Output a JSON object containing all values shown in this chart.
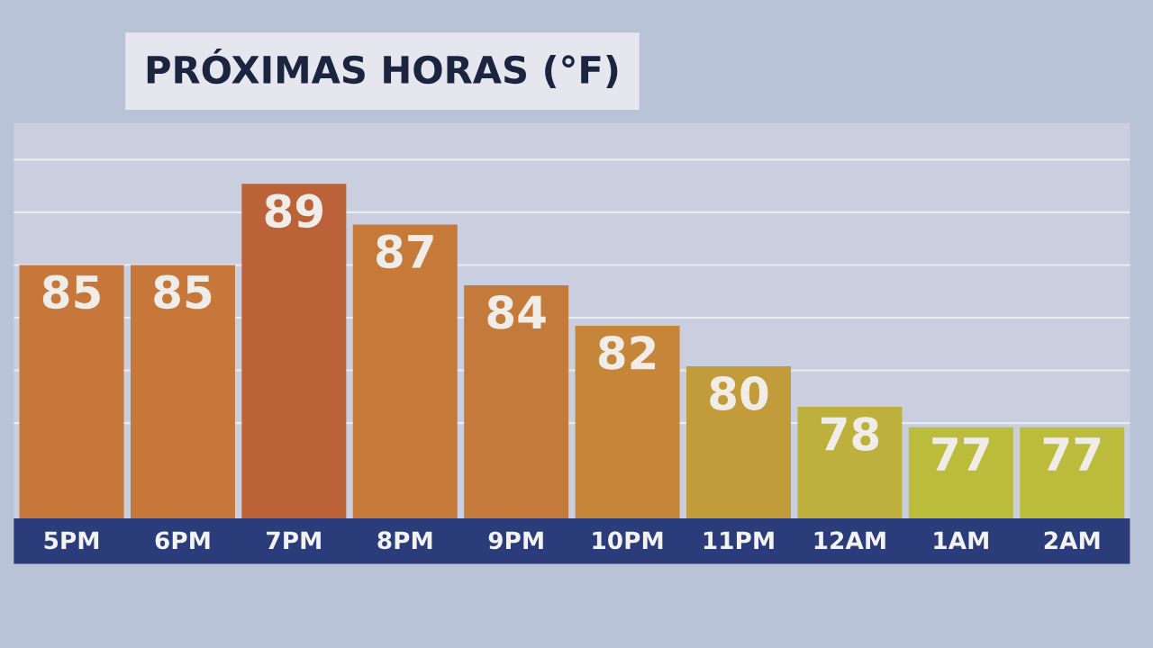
{
  "chart_data": {
    "type": "bar",
    "title": "PRÓXIMAS HORAS (°F)",
    "categories": [
      "5PM",
      "6PM",
      "7PM",
      "8PM",
      "9PM",
      "10PM",
      "11PM",
      "12AM",
      "1AM",
      "2AM"
    ],
    "values": [
      85,
      85,
      89,
      87,
      84,
      82,
      80,
      78,
      77,
      77
    ],
    "colors": [
      "#c8773a",
      "#c8773a",
      "#bb6239",
      "#c67a3a",
      "#c47a3a",
      "#c5863a",
      "#c29b3a",
      "#bdb03c",
      "#bcbc3c",
      "#bcbc3c"
    ],
    "ylim": [
      72.5,
      92
    ],
    "yticks": [
      {
        "value": 77.2,
        "label": null
      },
      {
        "value": 79.8,
        "label": null
      },
      {
        "value": 82.4,
        "label": null
      },
      {
        "value": 85.0,
        "label": null
      },
      {
        "value": 87.6,
        "label": null
      },
      {
        "value": 90.2,
        "label": null
      }
    ],
    "grid": "y",
    "data_labels": true
  }
}
